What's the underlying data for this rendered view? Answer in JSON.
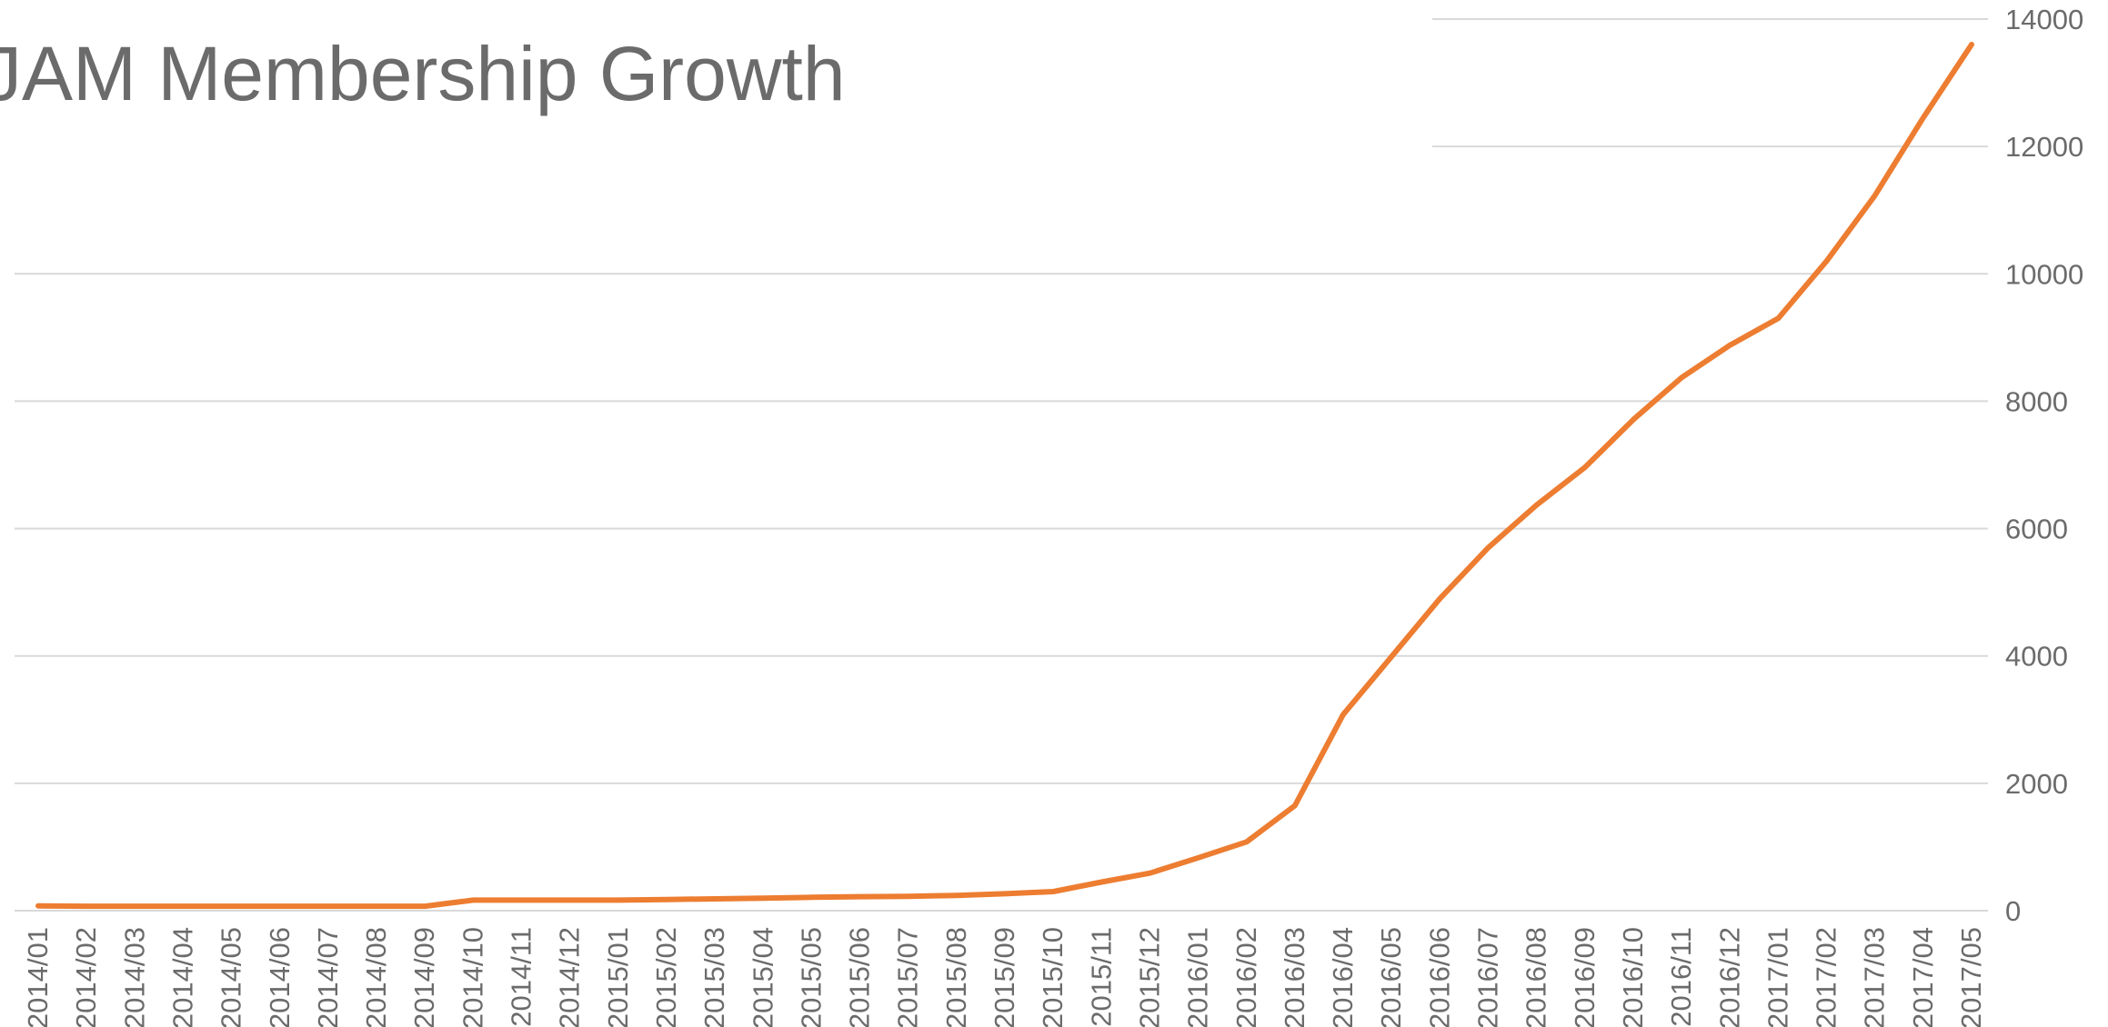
{
  "chart_data": {
    "type": "line",
    "title": "JAM Membership Growth",
    "xlabel": "",
    "ylabel": "",
    "categories": [
      "2014/01",
      "2014/02",
      "2014/03",
      "2014/04",
      "2014/05",
      "2014/06",
      "2014/07",
      "2014/08",
      "2014/09",
      "2014/10",
      "2014/11",
      "2014/12",
      "2015/01",
      "2015/02",
      "2015/03",
      "2015/04",
      "2015/05",
      "2015/06",
      "2015/07",
      "2015/08",
      "2015/09",
      "2015/10",
      "2015/11",
      "2015/12",
      "2016/01",
      "2016/02",
      "2016/03",
      "2016/04",
      "2016/05",
      "2016/06",
      "2016/07",
      "2016/08",
      "2016/09",
      "2016/10",
      "2016/11",
      "2016/12",
      "2017/01",
      "2017/02",
      "2017/03",
      "2017/04",
      "2017/05"
    ],
    "series": [
      {
        "values": [
          75,
          70,
          70,
          70,
          70,
          70,
          70,
          70,
          70,
          165,
          165,
          165,
          165,
          175,
          185,
          195,
          210,
          220,
          225,
          240,
          265,
          300,
          450,
          590,
          830,
          1080,
          1650,
          3080,
          3990,
          4900,
          5700,
          6370,
          6960,
          7710,
          8370,
          8880,
          9300,
          10200,
          11230,
          12450,
          13600
        ]
      }
    ],
    "ylim": [
      0,
      14000
    ],
    "y_ticks": [
      0,
      2000,
      4000,
      6000,
      8000,
      10000,
      12000,
      14000
    ],
    "y_axis_side": "right",
    "x_label_rotation": "vertical",
    "grid": "horizontal",
    "legend": "none",
    "colors": {
      "series": "#ed7d31",
      "grid": "#d9d9d9",
      "text": "#6b6b6b",
      "background": "#ffffff"
    }
  }
}
